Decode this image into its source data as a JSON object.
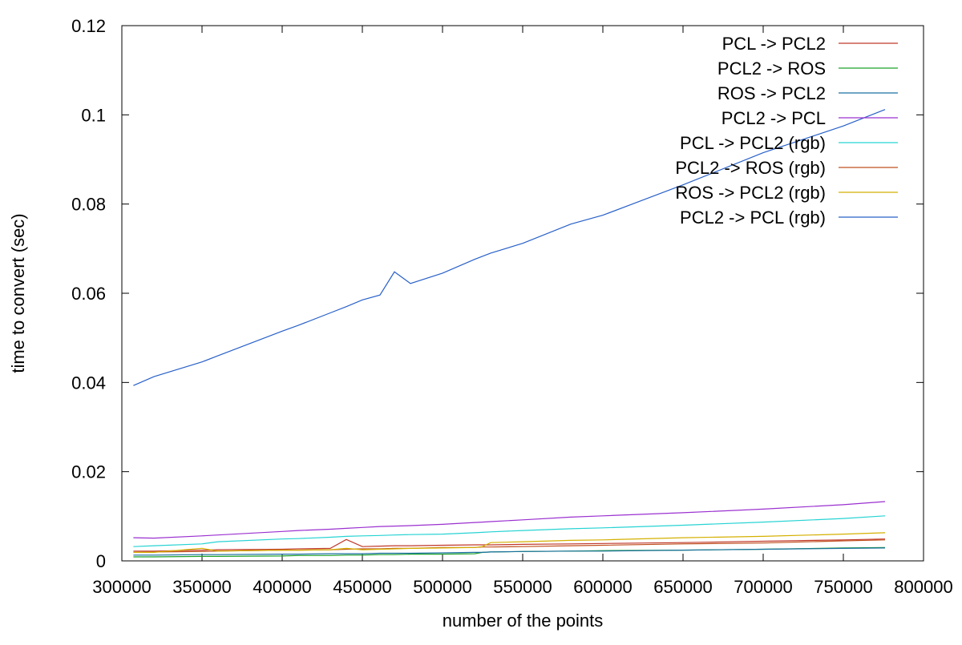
{
  "chart_data": {
    "type": "line",
    "title": "",
    "xlabel": "number of the points",
    "ylabel": "time to convert (sec)",
    "xlim": [
      300000,
      800000
    ],
    "ylim": [
      0,
      0.12
    ],
    "xticks": [
      300000,
      350000,
      400000,
      450000,
      500000,
      550000,
      600000,
      650000,
      700000,
      750000,
      800000
    ],
    "xtick_labels": [
      "300000",
      "350000",
      "400000",
      "450000",
      "500000",
      "550000",
      "600000",
      "650000",
      "700000",
      "750000",
      "800000"
    ],
    "yticks": [
      0,
      0.02,
      0.04,
      0.06,
      0.08,
      0.1,
      0.12
    ],
    "ytick_labels": [
      "0",
      "0.02",
      "0.04",
      "0.06",
      "0.08",
      "0.1",
      "0.12"
    ],
    "grid": false,
    "legend_position": "top-right",
    "x": [
      307200,
      320000,
      350000,
      360000,
      400000,
      410000,
      430000,
      440000,
      450000,
      461000,
      470000,
      480000,
      500000,
      520000,
      525000,
      530000,
      550000,
      580000,
      600000,
      650000,
      700000,
      750000,
      776000
    ],
    "series": [
      {
        "name": "PCL -> PCL2",
        "color": "#c0392b",
        "values": [
          0.0022,
          0.0022,
          0.0024,
          0.0025,
          0.0026,
          0.0027,
          0.0028,
          0.0048,
          0.0032,
          0.0033,
          0.0034,
          0.0034,
          0.0035,
          0.0036,
          0.0036,
          0.0036,
          0.0037,
          0.0038,
          0.0039,
          0.0041,
          0.0044,
          0.0047,
          0.0049
        ]
      },
      {
        "name": "PCL2 -> ROS",
        "color": "#1fa22a",
        "values": [
          0.0009,
          0.0009,
          0.001,
          0.001,
          0.0011,
          0.0012,
          0.0012,
          0.0013,
          0.0013,
          0.0014,
          0.0014,
          0.0015,
          0.0015,
          0.0016,
          0.0019,
          0.002,
          0.0021,
          0.0022,
          0.0023,
          0.0024,
          0.0026,
          0.0029,
          0.003
        ]
      },
      {
        "name": "ROS -> PCL2",
        "color": "#1a6fa0",
        "values": [
          0.0013,
          0.0013,
          0.0014,
          0.0014,
          0.0015,
          0.0015,
          0.0016,
          0.0016,
          0.0016,
          0.0017,
          0.0017,
          0.0017,
          0.0018,
          0.0019,
          0.0019,
          0.002,
          0.0021,
          0.0022,
          0.0022,
          0.0024,
          0.0026,
          0.0028,
          0.0029
        ]
      },
      {
        "name": "PCL2 -> PCL",
        "color": "#9b30d0",
        "values": [
          0.0052,
          0.0051,
          0.0056,
          0.0058,
          0.0066,
          0.0068,
          0.0071,
          0.0073,
          0.0075,
          0.0077,
          0.0078,
          0.0079,
          0.0082,
          0.0086,
          0.0087,
          0.0088,
          0.0092,
          0.0098,
          0.0101,
          0.0108,
          0.0116,
          0.0126,
          0.0133
        ]
      },
      {
        "name": "PCL -> PCL2 (rgb)",
        "color": "#27d3d3",
        "values": [
          0.0032,
          0.0034,
          0.0038,
          0.0043,
          0.0049,
          0.005,
          0.0053,
          0.0055,
          0.0056,
          0.0057,
          0.0058,
          0.0059,
          0.006,
          0.0063,
          0.0064,
          0.0065,
          0.0068,
          0.0072,
          0.0074,
          0.008,
          0.0087,
          0.0095,
          0.0101
        ]
      },
      {
        "name": "PCL2 -> ROS (rgb)",
        "color": "#c0501f",
        "values": [
          0.0019,
          0.002,
          0.0021,
          0.0022,
          0.0024,
          0.0024,
          0.0025,
          0.0026,
          0.0027,
          0.0027,
          0.0028,
          0.0028,
          0.003,
          0.003,
          0.0031,
          0.0031,
          0.0032,
          0.0034,
          0.0035,
          0.0038,
          0.004,
          0.0045,
          0.0047
        ]
      },
      {
        "name": "ROS -> PCL2 (rgb)",
        "color": "#d4b000",
        "values": [
          0.0019,
          0.0019,
          0.0028,
          0.0022,
          0.0024,
          0.0024,
          0.0025,
          0.0028,
          0.0025,
          0.0026,
          0.0027,
          0.0028,
          0.0029,
          0.003,
          0.0032,
          0.0041,
          0.0043,
          0.0046,
          0.0047,
          0.0052,
          0.0055,
          0.006,
          0.0063
        ]
      },
      {
        "name": "PCL2 -> PCL (rgb)",
        "color": "#2860c8",
        "values": [
          0.0393,
          0.0413,
          0.0446,
          0.046,
          0.0515,
          0.0528,
          0.0556,
          0.057,
          0.0585,
          0.0596,
          0.0648,
          0.0622,
          0.0645,
          0.0676,
          0.0683,
          0.069,
          0.0712,
          0.0755,
          0.0775,
          0.0843,
          0.0915,
          0.0975,
          0.1012
        ]
      }
    ]
  }
}
